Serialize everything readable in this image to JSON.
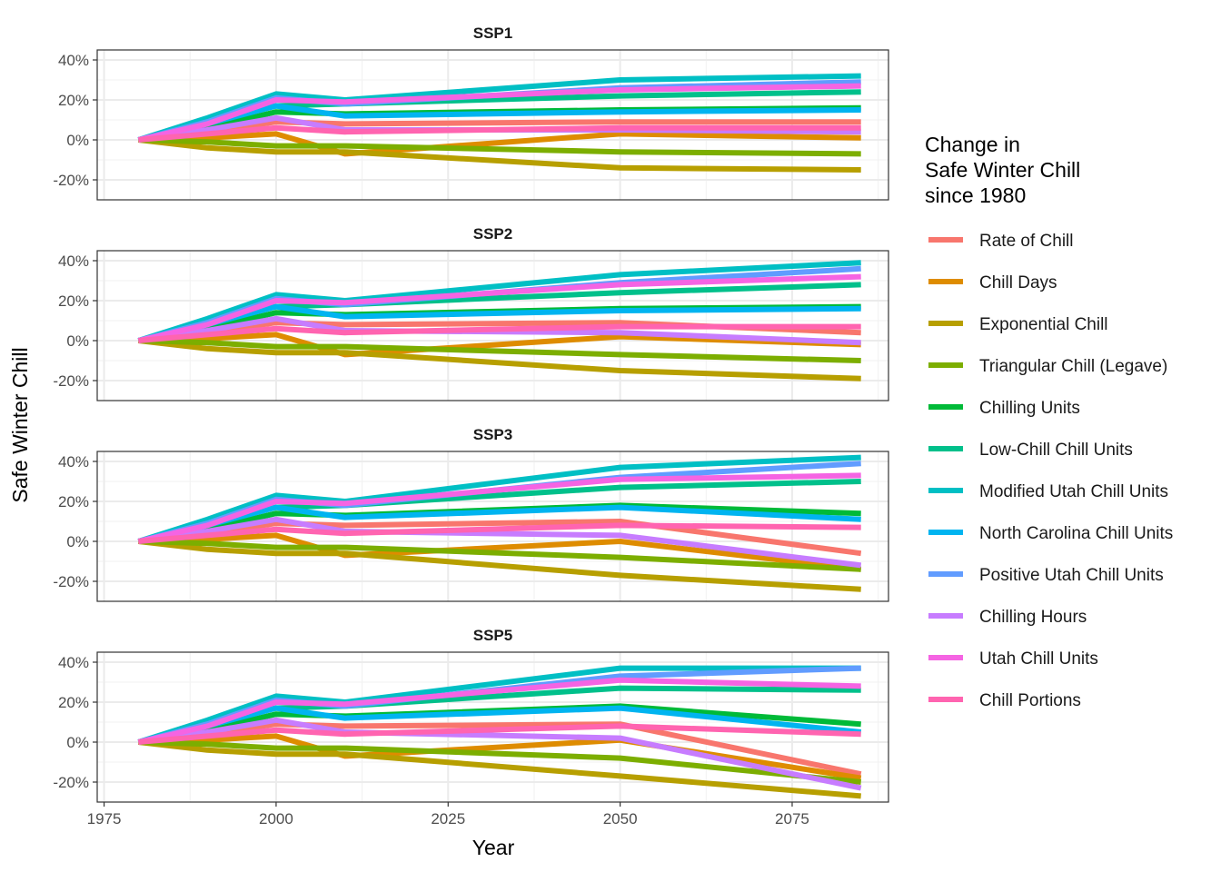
{
  "chart_data": {
    "type": "line",
    "xlabel": "Year",
    "ylabel": "Safe Winter Chill",
    "xlim": [
      1974,
      2089
    ],
    "ylim": [
      -30,
      45
    ],
    "x_ticks": [
      1975,
      2000,
      2025,
      2050,
      2075
    ],
    "x_tick_labels": [
      "1975",
      "2000",
      "2025",
      "2050",
      "2075"
    ],
    "y_ticks": [
      -20,
      0,
      20,
      40
    ],
    "y_tick_labels": [
      "-20%",
      "0%",
      "20%",
      "40%"
    ],
    "grid": true,
    "legend": {
      "title_lines": [
        "Change in",
        "Safe Winter Chill",
        "since 1980"
      ],
      "position": "right"
    },
    "x": [
      1980,
      1990,
      2000,
      2010,
      2050,
      2085
    ],
    "series_styles": [
      {
        "name": "Rate of Chill",
        "color": "#F8766D"
      },
      {
        "name": "Chill Days",
        "color": "#DE8C00"
      },
      {
        "name": "Exponential Chill",
        "color": "#B79F00"
      },
      {
        "name": "Triangular Chill (Legave)",
        "color": "#7CAE00"
      },
      {
        "name": "Chilling Units",
        "color": "#00BA38"
      },
      {
        "name": "Low-Chill Chill Units",
        "color": "#00C08B"
      },
      {
        "name": "Modified Utah Chill Units",
        "color": "#00BFC4"
      },
      {
        "name": "North Carolina Chill Units",
        "color": "#00B4F0"
      },
      {
        "name": "Positive Utah Chill Units",
        "color": "#619CFF"
      },
      {
        "name": "Chilling Hours",
        "color": "#C77CFF"
      },
      {
        "name": "Utah Chill Units",
        "color": "#F564E3"
      },
      {
        "name": "Chill Portions",
        "color": "#FF64B0"
      }
    ],
    "panels": [
      {
        "title": "SSP1",
        "series": [
          {
            "name": "Rate of Chill",
            "values": [
              0,
              4,
              9,
              8,
              9,
              9
            ]
          },
          {
            "name": "Chill Days",
            "values": [
              0,
              1,
              3,
              -7,
              3,
              1
            ]
          },
          {
            "name": "Exponential Chill",
            "values": [
              0,
              -4,
              -6,
              -6,
              -14,
              -15
            ]
          },
          {
            "name": "Triangular Chill (Legave)",
            "values": [
              0,
              -1,
              -3,
              -3,
              -6,
              -7
            ]
          },
          {
            "name": "Chilling Units",
            "values": [
              0,
              6,
              14,
              13,
              15,
              16
            ]
          },
          {
            "name": "Low-Chill Chill Units",
            "values": [
              0,
              9,
              17,
              18,
              22,
              24
            ]
          },
          {
            "name": "Modified Utah Chill Units",
            "values": [
              0,
              11,
              23,
              20,
              30,
              32
            ]
          },
          {
            "name": "North Carolina Chill Units",
            "values": [
              0,
              8,
              17,
              12,
              14,
              15
            ]
          },
          {
            "name": "Positive Utah Chill Units",
            "values": [
              0,
              9,
              21,
              18,
              26,
              29
            ]
          },
          {
            "name": "Chilling Hours",
            "values": [
              0,
              5,
              11,
              5,
              5,
              4
            ]
          },
          {
            "name": "Utah Chill Units",
            "values": [
              0,
              8,
              20,
              19,
              25,
              27
            ]
          },
          {
            "name": "Chill Portions",
            "values": [
              0,
              3,
              6,
              4,
              6,
              6
            ]
          }
        ]
      },
      {
        "title": "SSP2",
        "series": [
          {
            "name": "Rate of Chill",
            "values": [
              0,
              4,
              9,
              8,
              9,
              4
            ]
          },
          {
            "name": "Chill Days",
            "values": [
              0,
              1,
              3,
              -7,
              2,
              -2
            ]
          },
          {
            "name": "Exponential Chill",
            "values": [
              0,
              -4,
              -6,
              -6,
              -15,
              -19
            ]
          },
          {
            "name": "Triangular Chill (Legave)",
            "values": [
              0,
              -1,
              -3,
              -3,
              -7,
              -10
            ]
          },
          {
            "name": "Chilling Units",
            "values": [
              0,
              6,
              14,
              13,
              16,
              17
            ]
          },
          {
            "name": "Low-Chill Chill Units",
            "values": [
              0,
              9,
              17,
              18,
              24,
              28
            ]
          },
          {
            "name": "Modified Utah Chill Units",
            "values": [
              0,
              11,
              23,
              20,
              33,
              39
            ]
          },
          {
            "name": "North Carolina Chill Units",
            "values": [
              0,
              8,
              17,
              12,
              15,
              16
            ]
          },
          {
            "name": "Positive Utah Chill Units",
            "values": [
              0,
              9,
              21,
              18,
              29,
              36
            ]
          },
          {
            "name": "Chilling Hours",
            "values": [
              0,
              5,
              11,
              5,
              4,
              -1
            ]
          },
          {
            "name": "Utah Chill Units",
            "values": [
              0,
              8,
              20,
              19,
              28,
              32
            ]
          },
          {
            "name": "Chill Portions",
            "values": [
              0,
              3,
              6,
              4,
              7,
              7
            ]
          }
        ]
      },
      {
        "title": "SSP3",
        "series": [
          {
            "name": "Rate of Chill",
            "values": [
              0,
              4,
              9,
              8,
              10,
              -6
            ]
          },
          {
            "name": "Chill Days",
            "values": [
              0,
              1,
              3,
              -7,
              0,
              -14
            ]
          },
          {
            "name": "Exponential Chill",
            "values": [
              0,
              -4,
              -6,
              -6,
              -17,
              -24
            ]
          },
          {
            "name": "Triangular Chill (Legave)",
            "values": [
              0,
              -1,
              -3,
              -3,
              -8,
              -14
            ]
          },
          {
            "name": "Chilling Units",
            "values": [
              0,
              6,
              14,
              13,
              18,
              14
            ]
          },
          {
            "name": "Low-Chill Chill Units",
            "values": [
              0,
              9,
              17,
              18,
              27,
              30
            ]
          },
          {
            "name": "Modified Utah Chill Units",
            "values": [
              0,
              11,
              23,
              20,
              37,
              42
            ]
          },
          {
            "name": "North Carolina Chill Units",
            "values": [
              0,
              8,
              17,
              12,
              17,
              11
            ]
          },
          {
            "name": "Positive Utah Chill Units",
            "values": [
              0,
              9,
              21,
              18,
              32,
              39
            ]
          },
          {
            "name": "Chilling Hours",
            "values": [
              0,
              5,
              11,
              5,
              3,
              -12
            ]
          },
          {
            "name": "Utah Chill Units",
            "values": [
              0,
              8,
              20,
              19,
              31,
              33
            ]
          },
          {
            "name": "Chill Portions",
            "values": [
              0,
              3,
              6,
              4,
              8,
              7
            ]
          }
        ]
      },
      {
        "title": "SSP5",
        "series": [
          {
            "name": "Rate of Chill",
            "values": [
              0,
              4,
              9,
              8,
              9,
              -16
            ]
          },
          {
            "name": "Chill Days",
            "values": [
              0,
              1,
              3,
              -7,
              1,
              -18
            ]
          },
          {
            "name": "Exponential Chill",
            "values": [
              0,
              -4,
              -6,
              -6,
              -17,
              -27
            ]
          },
          {
            "name": "Triangular Chill (Legave)",
            "values": [
              0,
              -1,
              -3,
              -3,
              -8,
              -20
            ]
          },
          {
            "name": "Chilling Units",
            "values": [
              0,
              6,
              14,
              13,
              18,
              9
            ]
          },
          {
            "name": "Low-Chill Chill Units",
            "values": [
              0,
              9,
              17,
              18,
              27,
              26
            ]
          },
          {
            "name": "Modified Utah Chill Units",
            "values": [
              0,
              11,
              23,
              20,
              37,
              37
            ]
          },
          {
            "name": "North Carolina Chill Units",
            "values": [
              0,
              8,
              17,
              12,
              17,
              5
            ]
          },
          {
            "name": "Positive Utah Chill Units",
            "values": [
              0,
              9,
              21,
              18,
              33,
              37
            ]
          },
          {
            "name": "Chilling Hours",
            "values": [
              0,
              5,
              11,
              5,
              2,
              -23
            ]
          },
          {
            "name": "Utah Chill Units",
            "values": [
              0,
              8,
              20,
              19,
              31,
              28
            ]
          },
          {
            "name": "Chill Portions",
            "values": [
              0,
              3,
              6,
              4,
              8,
              4
            ]
          }
        ]
      }
    ]
  }
}
